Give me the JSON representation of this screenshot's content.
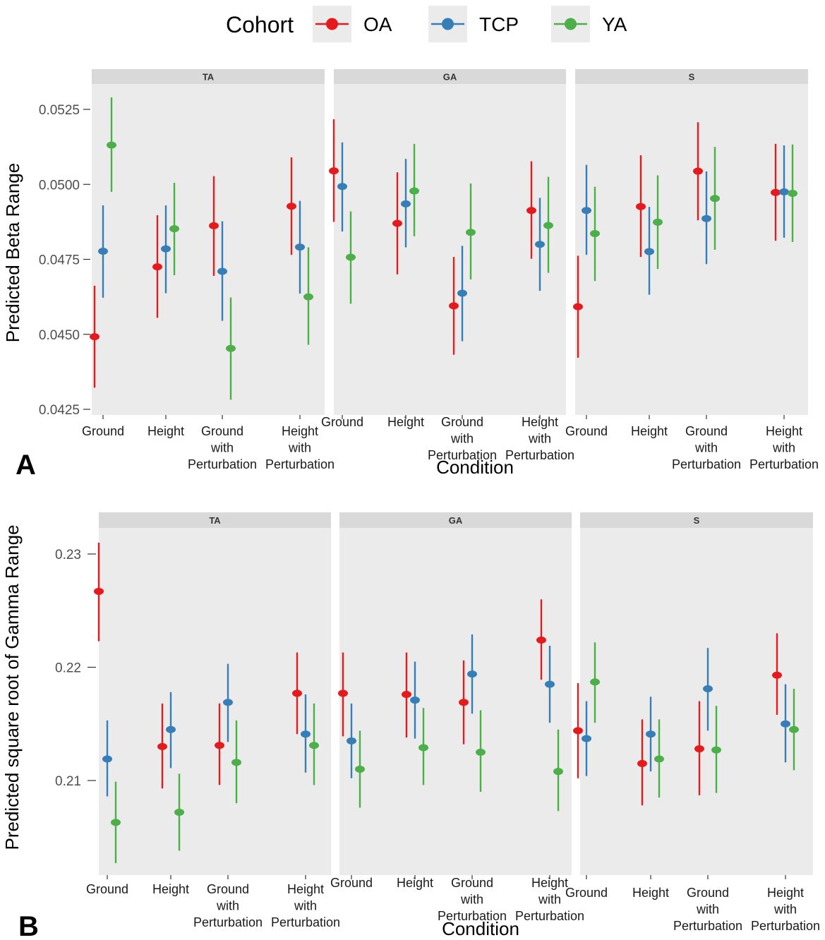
{
  "legend": {
    "title": "Cohort",
    "entries": [
      {
        "name": "OA",
        "color": "#e41a1c"
      },
      {
        "name": "TCP",
        "color": "#377eb8"
      },
      {
        "name": "YA",
        "color": "#4daf4a"
      }
    ]
  },
  "chart_data": [
    {
      "type": "errorbar",
      "panel_letter": "A",
      "ylabel": "Predicted Beta Range",
      "xlabel": "Condition",
      "ylim": [
        0.042,
        0.0532
      ],
      "yticks": [
        "0.0425",
        "0.0450",
        "0.0475",
        "0.0500",
        "0.0525"
      ],
      "ytick_values": [
        0.0425,
        0.045,
        0.0475,
        0.05,
        0.0525
      ],
      "categories": [
        [
          "Ground"
        ],
        [
          "Height"
        ],
        [
          "Ground",
          "with",
          "Perturbation"
        ],
        [
          "Height",
          "with",
          "Perturbation"
        ]
      ],
      "facets": [
        {
          "name": "TA",
          "series": [
            {
              "name": "OA",
              "values": [
                0.04492,
                0.04725,
                0.04862,
                0.04927
              ],
              "lower": [
                0.04322,
                0.04555,
                0.04695,
                0.04765
              ],
              "upper": [
                0.04662,
                0.04897,
                0.05027,
                0.0509
              ]
            },
            {
              "name": "TCP",
              "values": [
                0.04777,
                0.04785,
                0.0471,
                0.04791
              ],
              "lower": [
                0.04622,
                0.04637,
                0.04545,
                0.04636
              ],
              "upper": [
                0.0493,
                0.0493,
                0.04877,
                0.04945
              ]
            },
            {
              "name": "YA",
              "values": [
                0.05131,
                0.04852,
                0.04453,
                0.04625
              ],
              "lower": [
                0.04975,
                0.04697,
                0.04282,
                0.04465
              ],
              "upper": [
                0.0529,
                0.05005,
                0.04623,
                0.0479
              ]
            }
          ]
        },
        {
          "name": "GA",
          "series": [
            {
              "name": "OA",
              "values": [
                0.05045,
                0.0487,
                0.04595,
                0.04913
              ],
              "lower": [
                0.04875,
                0.047,
                0.04432,
                0.04752
              ],
              "upper": [
                0.05217,
                0.0504,
                0.04758,
                0.05077
              ]
            },
            {
              "name": "TCP",
              "values": [
                0.04993,
                0.04935,
                0.04637,
                0.048
              ],
              "lower": [
                0.04843,
                0.0479,
                0.04477,
                0.04645
              ],
              "upper": [
                0.0514,
                0.05085,
                0.04795,
                0.04955
              ]
            },
            {
              "name": "YA",
              "values": [
                0.04757,
                0.04978,
                0.0484,
                0.04863
              ],
              "lower": [
                0.04602,
                0.04827,
                0.04683,
                0.04705
              ],
              "upper": [
                0.0491,
                0.05135,
                0.05003,
                0.05025
              ]
            }
          ]
        },
        {
          "name": "S",
          "series": [
            {
              "name": "OA",
              "values": [
                0.04592,
                0.04926,
                0.05044,
                0.04973
              ],
              "lower": [
                0.04422,
                0.04758,
                0.0488,
                0.04812
              ],
              "upper": [
                0.04762,
                0.05097,
                0.05207,
                0.05135
              ]
            },
            {
              "name": "TCP",
              "values": [
                0.04913,
                0.04776,
                0.04886,
                0.04975
              ],
              "lower": [
                0.04765,
                0.04632,
                0.04734,
                0.04822
              ],
              "upper": [
                0.05065,
                0.04925,
                0.05043,
                0.0513
              ]
            },
            {
              "name": "YA",
              "values": [
                0.04836,
                0.04874,
                0.04953,
                0.0497
              ],
              "lower": [
                0.04678,
                0.04718,
                0.04782,
                0.04808
              ],
              "upper": [
                0.04992,
                0.0503,
                0.05125,
                0.05133
              ]
            }
          ]
        }
      ]
    },
    {
      "type": "errorbar",
      "panel_letter": "B",
      "ylabel": "Predicted square root of Gamma Range",
      "xlabel": "Condition",
      "ylim": [
        0.2017,
        0.2325
      ],
      "yticks": [
        "0.21",
        "0.22",
        "0.23"
      ],
      "ytick_values": [
        0.21,
        0.22,
        0.23
      ],
      "categories": [
        [
          "Ground"
        ],
        [
          "Height"
        ],
        [
          "Ground",
          "with",
          "Perturbation"
        ],
        [
          "Height",
          "with",
          "Perturbation"
        ]
      ],
      "facets": [
        {
          "name": "TA",
          "series": [
            {
              "name": "OA",
              "values": [
                0.2267,
                0.213,
                0.2131,
                0.2177
              ],
              "lower": [
                0.2223,
                0.2093,
                0.2096,
                0.2141
              ],
              "upper": [
                0.231,
                0.2168,
                0.2168,
                0.2213
              ]
            },
            {
              "name": "TCP",
              "values": [
                0.2119,
                0.2145,
                0.2169,
                0.2141
              ],
              "lower": [
                0.2086,
                0.2111,
                0.2134,
                0.2107
              ],
              "upper": [
                0.2153,
                0.2178,
                0.2203,
                0.2176
              ]
            },
            {
              "name": "YA",
              "values": [
                0.2063,
                0.2072,
                0.2116,
                0.2131
              ],
              "lower": [
                0.2027,
                0.2038,
                0.208,
                0.2096
              ],
              "upper": [
                0.2099,
                0.2106,
                0.2153,
                0.2168
              ]
            }
          ]
        },
        {
          "name": "GA",
          "series": [
            {
              "name": "OA",
              "values": [
                0.2177,
                0.2176,
                0.2169,
                0.2224
              ],
              "lower": [
                0.2139,
                0.2138,
                0.2132,
                0.2189
              ],
              "upper": [
                0.2213,
                0.2213,
                0.2206,
                0.226
              ]
            },
            {
              "name": "TCP",
              "values": [
                0.2135,
                0.2171,
                0.2194,
                0.2185
              ],
              "lower": [
                0.2102,
                0.2137,
                0.2159,
                0.2151
              ],
              "upper": [
                0.2168,
                0.2205,
                0.2229,
                0.2219
              ]
            },
            {
              "name": "YA",
              "values": [
                0.211,
                0.2129,
                0.2125,
                0.2108
              ],
              "lower": [
                0.2076,
                0.2096,
                0.209,
                0.2073
              ],
              "upper": [
                0.2144,
                0.2164,
                0.2162,
                0.2145
              ]
            }
          ]
        },
        {
          "name": "S",
          "series": [
            {
              "name": "OA",
              "values": [
                0.2144,
                0.2115,
                0.2128,
                0.2193
              ],
              "lower": [
                0.2102,
                0.2078,
                0.2087,
                0.2158
              ],
              "upper": [
                0.2186,
                0.2154,
                0.217,
                0.223
              ]
            },
            {
              "name": "TCP",
              "values": [
                0.2137,
                0.2141,
                0.2181,
                0.215
              ],
              "lower": [
                0.2104,
                0.2108,
                0.2144,
                0.2116
              ],
              "upper": [
                0.217,
                0.2174,
                0.2217,
                0.2185
              ]
            },
            {
              "name": "YA",
              "values": [
                0.2187,
                0.2119,
                0.2127,
                0.2145
              ],
              "lower": [
                0.2151,
                0.2085,
                0.2089,
                0.2109
              ],
              "upper": [
                0.2222,
                0.2154,
                0.2166,
                0.2181
              ]
            }
          ]
        }
      ]
    }
  ]
}
